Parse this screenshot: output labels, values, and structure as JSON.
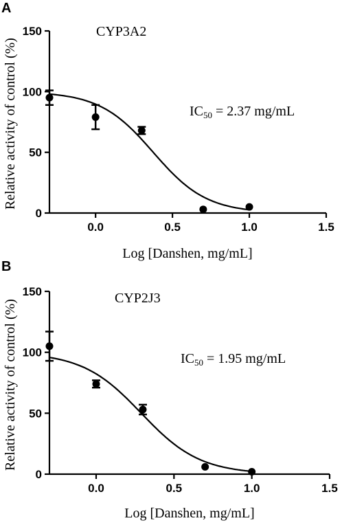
{
  "chart_data": [
    {
      "type": "scatter",
      "panel": "A",
      "title": "CYP3A2",
      "xlabel": "Log [Danshen, mg/mL]",
      "ylabel": "Relative activity of control (%)",
      "xlim": [
        -0.3,
        1.5
      ],
      "ylim": [
        0,
        150
      ],
      "x_ticks": [
        "0.0",
        "0.5",
        "1.0",
        "1.5"
      ],
      "y_ticks": [
        "0",
        "50",
        "100",
        "150"
      ],
      "ic50_label": "IC",
      "ic50_sub": "50",
      "ic50_value": " = 2.37 mg/mL",
      "ic50": 2.37,
      "points": [
        {
          "x": -0.3,
          "y": 95,
          "err": 6
        },
        {
          "x": 0.0,
          "y": 79,
          "err": 10
        },
        {
          "x": 0.3,
          "y": 68,
          "err": 3
        },
        {
          "x": 0.7,
          "y": 3,
          "err": 0
        },
        {
          "x": 1.0,
          "y": 5,
          "err": 0
        }
      ],
      "fit": {
        "top": 100,
        "bottom": 0,
        "hill": 2.5,
        "logIC50": 0.375
      }
    },
    {
      "type": "scatter",
      "panel": "B",
      "title": "CYP2J3",
      "xlabel": "Log [Danshen, mg/mL]",
      "ylabel": "Relative activity of control (%)",
      "xlim": [
        -0.3,
        1.5
      ],
      "ylim": [
        0,
        150
      ],
      "x_ticks": [
        "0.0",
        "0.5",
        "1.0",
        "1.5"
      ],
      "y_ticks": [
        "0",
        "50",
        "100",
        "150"
      ],
      "ic50_label": "IC",
      "ic50_sub": "50",
      "ic50_value": " = 1.95 mg/mL",
      "ic50": 1.95,
      "points": [
        {
          "x": -0.3,
          "y": 105,
          "err": 12
        },
        {
          "x": 0.0,
          "y": 74,
          "err": 3
        },
        {
          "x": 0.3,
          "y": 53,
          "err": 4
        },
        {
          "x": 0.7,
          "y": 6,
          "err": 0
        },
        {
          "x": 1.0,
          "y": 2,
          "err": 0
        }
      ],
      "fit": {
        "top": 100,
        "bottom": 0,
        "hill": 2.3,
        "logIC50": 0.29
      }
    }
  ]
}
